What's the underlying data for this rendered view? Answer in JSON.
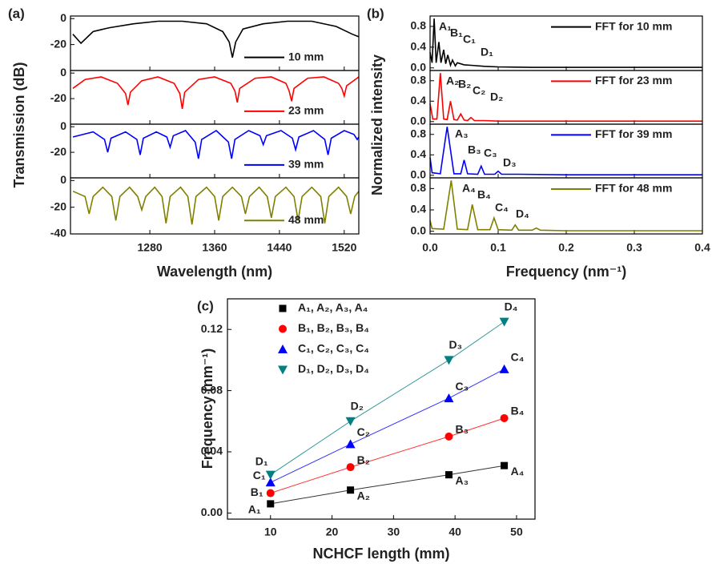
{
  "chart_data": [
    {
      "type": "line",
      "panel_label": "(a)",
      "xlabel": "Wavelength (nm)",
      "ylabel": "Transmission (dB)",
      "xlim": [
        1182,
        1538
      ],
      "xticks": [
        1280,
        1360,
        1440,
        1520
      ],
      "panels": [
        {
          "ylim": [
            -40,
            2
          ],
          "yticks": [
            0,
            -20
          ],
          "series": [
            {
              "name": "10 mm",
              "color": "#000000",
              "x": [
                1185,
                1195,
                1210,
                1230,
                1260,
                1290,
                1320,
                1350,
                1370,
                1378,
                1382,
                1386,
                1395,
                1420,
                1450,
                1480,
                1510,
                1530,
                1538
              ],
              "values": [
                -12,
                -19,
                -10,
                -7,
                -4,
                -2,
                -2,
                -4,
                -10,
                -18,
                -30,
                -18,
                -8,
                -4,
                -2,
                -2,
                -6,
                -12,
                -14
              ]
            }
          ]
        },
        {
          "ylim": [
            -40,
            2
          ],
          "yticks": [
            0,
            -20
          ],
          "series": [
            {
              "name": "23 mm",
              "color": "#ff0000",
              "x": [
                1185,
                1200,
                1220,
                1240,
                1250,
                1253,
                1256,
                1270,
                1290,
                1310,
                1317,
                1320,
                1323,
                1340,
                1360,
                1380,
                1385,
                1388,
                1391,
                1410,
                1430,
                1448,
                1452,
                1455,
                1458,
                1475,
                1495,
                1513,
                1517,
                1520,
                1523,
                1538
              ],
              "values": [
                -12,
                -5,
                -3,
                -8,
                -16,
                -25,
                -15,
                -6,
                -3,
                -8,
                -16,
                -28,
                -15,
                -5,
                -3,
                -8,
                -14,
                -23,
                -12,
                -4,
                -3,
                -8,
                -14,
                -22,
                -12,
                -4,
                -3,
                -8,
                -12,
                -18,
                -10,
                -3
              ]
            }
          ]
        },
        {
          "ylim": [
            -40,
            2
          ],
          "yticks": [
            0,
            -20
          ],
          "series": [
            {
              "name": "39 mm",
              "color": "#0000ff",
              "x": [
                1185,
                1210,
                1224,
                1228,
                1232,
                1250,
                1264,
                1268,
                1272,
                1288,
                1301,
                1305,
                1309,
                1324,
                1336,
                1340,
                1344,
                1362,
                1377,
                1381,
                1385,
                1402,
                1416,
                1420,
                1424,
                1442,
                1456,
                1460,
                1464,
                1482,
                1496,
                1500,
                1504,
                1520,
                1532,
                1536,
                1538
              ],
              "values": [
                -8,
                -4,
                -10,
                -20,
                -9,
                -4,
                -10,
                -22,
                -9,
                -4,
                -8,
                -16,
                -7,
                -3,
                -12,
                -25,
                -10,
                -3,
                -12,
                -25,
                -10,
                -3,
                -7,
                -14,
                -7,
                -3,
                -9,
                -18,
                -8,
                -3,
                -10,
                -22,
                -9,
                -3,
                -6,
                -10,
                -8
              ]
            }
          ]
        },
        {
          "ylim": [
            -40,
            2
          ],
          "yticks": [
            0,
            -20,
            -40
          ],
          "series": [
            {
              "name": "48 mm",
              "color": "#808000",
              "x": [
                1185,
                1200,
                1205,
                1210,
                1222,
                1233,
                1238,
                1243,
                1255,
                1265,
                1270,
                1275,
                1286,
                1295,
                1300,
                1305,
                1318,
                1327,
                1332,
                1337,
                1350,
                1360,
                1365,
                1370,
                1382,
                1393,
                1398,
                1403,
                1415,
                1425,
                1430,
                1435,
                1448,
                1458,
                1463,
                1468,
                1480,
                1491,
                1496,
                1501,
                1513,
                1523,
                1528,
                1533,
                1538
              ],
              "values": [
                -8,
                -12,
                -25,
                -12,
                -5,
                -12,
                -30,
                -12,
                -5,
                -12,
                -22,
                -12,
                -5,
                -12,
                -32,
                -12,
                -5,
                -12,
                -33,
                -12,
                -5,
                -12,
                -30,
                -12,
                -5,
                -12,
                -25,
                -12,
                -5,
                -12,
                -28,
                -12,
                -5,
                -12,
                -30,
                -12,
                -5,
                -12,
                -32,
                -12,
                -5,
                -12,
                -25,
                -12,
                -8
              ]
            }
          ]
        }
      ]
    },
    {
      "type": "line",
      "panel_label": "(b)",
      "xlabel": "Frequency (nm⁻¹)",
      "ylabel": "Normalized intensity",
      "xlim": [
        0,
        0.4
      ],
      "xticks": [
        {
          "value": 0,
          "label": "0.0"
        },
        0.1,
        0.2,
        0.3,
        0.4
      ],
      "panels": [
        {
          "ylim": [
            -0.05,
            1.0
          ],
          "yticks": [
            {
              "value": 0,
              "label": "0.0"
            },
            0.4,
            0.8
          ],
          "annotations": [
            "A₁",
            "B₁",
            "C₁",
            "D₁"
          ],
          "series": [
            {
              "name": "FFT for 10 mm",
              "color": "#000000",
              "x": [
                0,
                0.003,
                0.006,
                0.009,
                0.013,
                0.016,
                0.02,
                0.023,
                0.026,
                0.03,
                0.033,
                0.037,
                0.04,
                0.05,
                0.06,
                0.08,
                0.1,
                0.15,
                0.2,
                0.3,
                0.4
              ],
              "values": [
                0.3,
                0.1,
                0.95,
                0.1,
                0.5,
                0.1,
                0.35,
                0.08,
                0.25,
                0.05,
                0.15,
                0.04,
                0.1,
                0.06,
                0.05,
                0.03,
                0.02,
                0.01,
                0.01,
                0.01,
                0.01
              ]
            }
          ]
        },
        {
          "ylim": [
            -0.05,
            1.0
          ],
          "yticks": [
            {
              "value": 0,
              "label": "0.0"
            },
            0.4,
            0.8
          ],
          "annotations": [
            "A₂",
            "B₂",
            "C₂",
            "D₂"
          ],
          "series": [
            {
              "name": "FFT for 23 mm",
              "color": "#ff0000",
              "x": [
                0,
                0.004,
                0.01,
                0.015,
                0.02,
                0.025,
                0.03,
                0.035,
                0.04,
                0.045,
                0.05,
                0.055,
                0.06,
                0.065,
                0.08,
                0.1,
                0.15,
                0.2,
                0.3,
                0.4
              ],
              "values": [
                0.35,
                0.05,
                0.05,
                0.95,
                0.05,
                0.04,
                0.4,
                0.04,
                0.03,
                0.15,
                0.03,
                0.02,
                0.08,
                0.02,
                0.02,
                0.01,
                0.01,
                0.01,
                0.01,
                0.01
              ]
            }
          ]
        },
        {
          "ylim": [
            -0.05,
            1.0
          ],
          "yticks": [
            {
              "value": 0,
              "label": "0.0"
            },
            0.4,
            0.8
          ],
          "annotations": [
            "A₃",
            "B₃",
            "C₃",
            "D₃"
          ],
          "series": [
            {
              "name": "FFT for 39 mm",
              "color": "#0000ff",
              "x": [
                0,
                0.003,
                0.015,
                0.025,
                0.035,
                0.045,
                0.05,
                0.055,
                0.07,
                0.075,
                0.08,
                0.095,
                0.1,
                0.105,
                0.13,
                0.2,
                0.3,
                0.4
              ],
              "values": [
                0.35,
                0.05,
                0.03,
                0.95,
                0.03,
                0.03,
                0.3,
                0.03,
                0.02,
                0.18,
                0.02,
                0.02,
                0.08,
                0.02,
                0.02,
                0.01,
                0.01,
                0.01
              ]
            }
          ]
        },
        {
          "ylim": [
            -0.05,
            1.0
          ],
          "yticks": [
            {
              "value": 0,
              "label": "0.0"
            },
            0.4,
            0.8
          ],
          "annotations": [
            "A₄",
            "B₄",
            "C₄",
            "D₄"
          ],
          "series": [
            {
              "name": "FFT for 48 mm",
              "color": "#808000",
              "x": [
                0,
                0.003,
                0.02,
                0.031,
                0.04,
                0.055,
                0.062,
                0.07,
                0.088,
                0.094,
                0.1,
                0.12,
                0.125,
                0.13,
                0.15,
                0.156,
                0.162,
                0.2,
                0.3,
                0.4
              ],
              "values": [
                0.2,
                0.05,
                0.04,
                0.95,
                0.04,
                0.03,
                0.5,
                0.03,
                0.03,
                0.25,
                0.03,
                0.02,
                0.12,
                0.02,
                0.02,
                0.06,
                0.02,
                0.01,
                0.01,
                0.01
              ]
            }
          ]
        }
      ]
    },
    {
      "type": "scatter",
      "panel_label": "(c)",
      "xlabel": "NCHCF length (mm)",
      "ylabel": "Frequency (nm⁻¹)",
      "xlim": [
        3,
        53
      ],
      "xticks": [
        10,
        20,
        30,
        40,
        50
      ],
      "ylim": [
        -0.004,
        0.14
      ],
      "yticks": [
        {
          "value": 0,
          "label": "0.00"
        },
        {
          "value": 0.04,
          "label": "0.04"
        },
        {
          "value": 0.08,
          "label": "0.08"
        },
        {
          "value": 0.12,
          "label": "0.12"
        }
      ],
      "x": [
        10,
        23,
        39,
        48
      ],
      "series": [
        {
          "name": "A₁, A₂, A₃, A₄",
          "color": "#000000",
          "marker": "square",
          "values": [
            0.006,
            0.015,
            0.025,
            0.031
          ],
          "point_labels": [
            "A₁",
            "A₂",
            "A₃",
            "A₄"
          ]
        },
        {
          "name": "B₁, B₂, B₃, B₄",
          "color": "#ff0000",
          "marker": "circle",
          "values": [
            0.013,
            0.03,
            0.05,
            0.062
          ],
          "point_labels": [
            "B₁",
            "B₂",
            "B₃",
            "B₄"
          ]
        },
        {
          "name": "C₁, C₂, C₃, C₄",
          "color": "#0000ff",
          "marker": "triangle-up",
          "values": [
            0.02,
            0.045,
            0.075,
            0.094
          ],
          "point_labels": [
            "C₁",
            "C₂",
            "C₃",
            "C₄"
          ]
        },
        {
          "name": "D₁, D₂, D₃, D₄",
          "color": "#008080",
          "marker": "triangle-down",
          "values": [
            0.025,
            0.06,
            0.1,
            0.125
          ],
          "point_labels": [
            "D₁",
            "D₂",
            "D₃",
            "D₄"
          ]
        }
      ]
    }
  ]
}
